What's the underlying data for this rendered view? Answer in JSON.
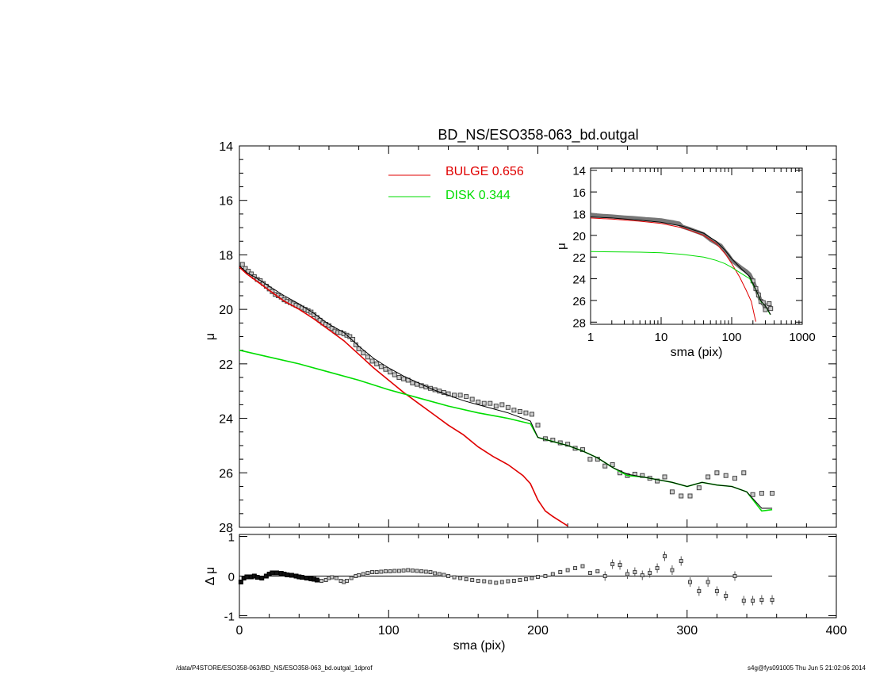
{
  "title": "BD_NS/ESO358-063_bd.outgal",
  "footer_left": "/data/P4STORE/ESO358-063/BD_NS/ESO358-063_bd.outgal_1dprof",
  "footer_right": "s4g@fys091005  Thu Jun  5 21:02:06 2014",
  "colors": {
    "bulge": "#e00000",
    "disk": "#00dd00",
    "data": "#444444",
    "model": "#000000"
  },
  "chart_data": [
    {
      "type": "line",
      "panel": "main",
      "xlabel": "",
      "ylabel": "μ",
      "xlim": [
        0,
        400
      ],
      "ylim": [
        28,
        14
      ],
      "x_ticks": [
        0,
        100,
        200,
        300,
        400
      ],
      "y_ticks": [
        14,
        16,
        18,
        20,
        22,
        24,
        26,
        28
      ],
      "legend": [
        {
          "label": "BULGE",
          "value": "0.656",
          "color": "#e00000"
        },
        {
          "label": "DISK",
          "value": "0.344",
          "color": "#00dd00"
        }
      ],
      "series": [
        {
          "name": "BULGE",
          "color": "#e00000",
          "x": [
            0,
            5,
            10,
            20,
            30,
            40,
            50,
            60,
            70,
            80,
            90,
            100,
            110,
            120,
            130,
            140,
            150,
            160,
            170,
            180,
            190,
            195,
            200,
            205,
            210,
            220
          ],
          "y": [
            18.45,
            18.7,
            18.9,
            19.3,
            19.7,
            20.0,
            20.35,
            20.75,
            21.15,
            21.65,
            22.15,
            22.6,
            23.05,
            23.45,
            23.85,
            24.25,
            24.6,
            25.05,
            25.4,
            25.7,
            26.1,
            26.4,
            27.0,
            27.4,
            27.6,
            27.95
          ]
        },
        {
          "name": "DISK",
          "color": "#00dd00",
          "x": [
            0,
            20,
            40,
            60,
            80,
            100,
            120,
            140,
            160,
            180,
            195,
            200,
            210,
            220,
            230,
            240,
            250,
            260,
            270,
            280,
            290,
            300,
            310,
            320,
            330,
            340,
            350,
            357
          ],
          "y": [
            21.5,
            21.75,
            22.0,
            22.3,
            22.6,
            22.95,
            23.25,
            23.55,
            23.8,
            24.0,
            24.2,
            24.7,
            24.85,
            25.0,
            25.2,
            25.45,
            25.8,
            26.1,
            26.15,
            26.25,
            26.35,
            26.5,
            26.35,
            26.45,
            26.5,
            26.7,
            27.4,
            27.35
          ]
        },
        {
          "name": "",
          "color": "#000000",
          "x": [
            0,
            5,
            10,
            20,
            30,
            40,
            50,
            60,
            70,
            80,
            90,
            100,
            110,
            120,
            130,
            140,
            150,
            160,
            170,
            180,
            195,
            200,
            210,
            220,
            230,
            240,
            250,
            260,
            270,
            280,
            290,
            300,
            310,
            320,
            330,
            340,
            350,
            357
          ],
          "y": [
            18.4,
            18.65,
            18.8,
            19.15,
            19.5,
            19.8,
            20.15,
            20.55,
            20.85,
            21.35,
            21.8,
            22.15,
            22.45,
            22.7,
            22.95,
            23.15,
            23.35,
            23.5,
            23.65,
            23.8,
            24.1,
            24.7,
            24.85,
            25.0,
            25.2,
            25.45,
            25.8,
            26.05,
            26.15,
            26.25,
            26.35,
            26.5,
            26.35,
            26.45,
            26.5,
            26.7,
            27.3,
            27.3
          ]
        }
      ],
      "points": {
        "name": "",
        "x": [
          2,
          4,
          6,
          8,
          10,
          12,
          14,
          16,
          18,
          20,
          22,
          24,
          26,
          28,
          30,
          32,
          34,
          36,
          38,
          40,
          42,
          44,
          46,
          48,
          50,
          52,
          54,
          56,
          58,
          60,
          62,
          64,
          66,
          68,
          70,
          72,
          74,
          76,
          78,
          80,
          83,
          86,
          89,
          92,
          95,
          98,
          101,
          104,
          107,
          110,
          113,
          116,
          119,
          122,
          125,
          128,
          131,
          134,
          137,
          140,
          144,
          148,
          152,
          156,
          160,
          164,
          168,
          172,
          176,
          180,
          184,
          188,
          192,
          196,
          200,
          205,
          210,
          215,
          220,
          225,
          230,
          235,
          240,
          245,
          250,
          255,
          260,
          265,
          270,
          275,
          280,
          285,
          290,
          296,
          302,
          308,
          314,
          320,
          326,
          332,
          338,
          344,
          350,
          357
        ],
        "y": [
          18.35,
          18.5,
          18.6,
          18.7,
          18.8,
          18.9,
          18.95,
          19.05,
          19.15,
          19.25,
          19.35,
          19.45,
          19.5,
          19.55,
          19.65,
          19.7,
          19.75,
          19.8,
          19.85,
          19.9,
          19.95,
          20.0,
          20.05,
          20.1,
          20.2,
          20.3,
          20.4,
          20.5,
          20.55,
          20.6,
          20.7,
          20.8,
          20.85,
          20.85,
          20.9,
          20.95,
          21.0,
          21.1,
          21.3,
          21.45,
          21.6,
          21.75,
          21.9,
          22.0,
          22.1,
          22.2,
          22.3,
          22.4,
          22.5,
          22.55,
          22.6,
          22.7,
          22.75,
          22.8,
          22.85,
          22.9,
          22.95,
          23.0,
          23.05,
          23.1,
          23.15,
          23.15,
          23.2,
          23.3,
          23.4,
          23.45,
          23.45,
          23.55,
          23.5,
          23.6,
          23.7,
          23.75,
          23.8,
          23.85,
          24.25,
          24.75,
          24.8,
          24.9,
          24.95,
          25.1,
          25.15,
          25.5,
          25.5,
          25.75,
          25.7,
          26.0,
          26.1,
          26.05,
          26.1,
          26.2,
          26.3,
          26.15,
          26.7,
          26.85,
          26.85,
          26.55,
          26.15,
          26.0,
          26.1,
          26.2,
          26.0,
          26.8,
          26.75,
          26.75
        ]
      }
    },
    {
      "type": "scatter",
      "panel": "residual",
      "xlabel": "sma (pix)",
      "ylabel": "Δ μ",
      "xlim": [
        0,
        400
      ],
      "ylim": [
        -1.05,
        1.05
      ],
      "x_ticks": [
        0,
        100,
        200,
        300,
        400
      ],
      "y_ticks": [
        -1,
        0,
        1
      ],
      "zero_line": {
        "x": [
          0,
          357
        ],
        "y": 0
      },
      "points": {
        "x": [
          1,
          3,
          5,
          8,
          10,
          12,
          15,
          18,
          20,
          22,
          25,
          28,
          30,
          32,
          35,
          38,
          40,
          42,
          45,
          48,
          50,
          52,
          55,
          58,
          60,
          62,
          65,
          68,
          70,
          72,
          75,
          78,
          80,
          83,
          86,
          89,
          92,
          95,
          98,
          101,
          104,
          107,
          110,
          113,
          116,
          119,
          122,
          125,
          128,
          131,
          134,
          137,
          140,
          144,
          148,
          152,
          156,
          160,
          164,
          168,
          172,
          176,
          180,
          184,
          188,
          192,
          196,
          200,
          205,
          210,
          215,
          220,
          225,
          230,
          235,
          240,
          245,
          250,
          255,
          260,
          265,
          270,
          275,
          280,
          285,
          290,
          296,
          302,
          308,
          314,
          320,
          326,
          332,
          338,
          344,
          350,
          357
        ],
        "y": [
          -0.15,
          -0.05,
          -0.02,
          -0.02,
          0.0,
          -0.03,
          -0.05,
          0.0,
          0.05,
          0.08,
          0.08,
          0.07,
          0.05,
          0.03,
          0.02,
          0.0,
          -0.02,
          -0.03,
          -0.05,
          -0.07,
          -0.08,
          -0.1,
          -0.12,
          -0.1,
          -0.05,
          -0.03,
          -0.05,
          -0.12,
          -0.15,
          -0.12,
          -0.05,
          0.0,
          0.02,
          0.05,
          0.08,
          0.1,
          0.1,
          0.11,
          0.12,
          0.12,
          0.13,
          0.13,
          0.14,
          0.15,
          0.14,
          0.13,
          0.12,
          0.11,
          0.1,
          0.07,
          0.05,
          0.03,
          0.0,
          -0.03,
          -0.05,
          -0.08,
          -0.1,
          -0.12,
          -0.13,
          -0.15,
          -0.17,
          -0.15,
          -0.13,
          -0.12,
          -0.1,
          -0.08,
          -0.05,
          -0.02,
          0.0,
          0.05,
          0.1,
          0.15,
          0.2,
          0.25,
          0.08,
          0.12,
          0.0,
          0.3,
          0.28,
          0.05,
          0.1,
          0.02,
          0.08,
          0.2,
          0.5,
          0.15,
          0.38,
          -0.15,
          -0.38,
          -0.15,
          -0.38,
          -0.5,
          0.0,
          -0.62,
          -0.62,
          -0.6,
          -0.6
        ]
      }
    },
    {
      "type": "line",
      "panel": "inset",
      "xlabel": "sma (pix)",
      "ylabel": "μ",
      "xscale": "log",
      "xlim": [
        1,
        1000
      ],
      "ylim": [
        28.2,
        13.8
      ],
      "x_ticks": [
        1,
        10,
        100,
        1000
      ],
      "x_tick_labels": [
        "1",
        "10",
        "100",
        "1000"
      ],
      "y_ticks": [
        14,
        16,
        18,
        20,
        22,
        24,
        26,
        28
      ],
      "series": [
        {
          "name": "BULGE",
          "color": "#e00000",
          "x": [
            1,
            2,
            5,
            10,
            20,
            40,
            60,
            80,
            100,
            130,
            160,
            190,
            210,
            220
          ],
          "y": [
            18.4,
            18.5,
            18.7,
            18.9,
            19.3,
            20.0,
            20.75,
            21.65,
            22.6,
            23.85,
            25.05,
            26.1,
            27.4,
            27.95
          ]
        },
        {
          "name": "DISK",
          "color": "#00dd00",
          "x": [
            1,
            5,
            10,
            20,
            40,
            60,
            80,
            100,
            140,
            180,
            220,
            260,
            300,
            350
          ],
          "y": [
            21.5,
            21.55,
            21.6,
            21.75,
            22.0,
            22.3,
            22.6,
            22.95,
            23.55,
            24.0,
            25.0,
            26.1,
            26.5,
            27.3
          ]
        },
        {
          "name": "",
          "color": "#000000",
          "x": [
            1,
            2,
            5,
            10,
            20,
            40,
            60,
            80,
            100,
            140,
            180,
            220,
            260,
            300,
            357
          ],
          "y": [
            18.3,
            18.4,
            18.6,
            18.8,
            19.15,
            19.8,
            20.55,
            21.35,
            22.15,
            23.15,
            23.8,
            25.0,
            26.05,
            26.5,
            27.3
          ]
        }
      ],
      "points": {
        "x": [
          1,
          1.2,
          1.5,
          2,
          2.5,
          3,
          4,
          5,
          6,
          8,
          10,
          12,
          15,
          18,
          20,
          25,
          30,
          35,
          40,
          50,
          60,
          70,
          80,
          90,
          100,
          120,
          140,
          160,
          180,
          200,
          220,
          240,
          260,
          280,
          300,
          320,
          340,
          357
        ],
        "y": [
          18.1,
          18.15,
          18.2,
          18.25,
          18.3,
          18.35,
          18.4,
          18.45,
          18.5,
          18.55,
          18.6,
          18.7,
          18.8,
          18.9,
          19.2,
          19.4,
          19.6,
          19.75,
          19.9,
          20.4,
          20.7,
          20.95,
          21.45,
          21.85,
          22.3,
          22.7,
          23.05,
          23.3,
          23.6,
          24.2,
          24.9,
          25.5,
          26.1,
          26.2,
          26.85,
          26.5,
          26.3,
          26.75
        ]
      }
    }
  ]
}
